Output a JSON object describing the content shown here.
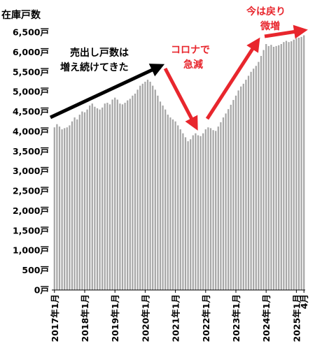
{
  "chart_data": {
    "type": "bar",
    "title": "",
    "ylabel": "在庫戸数",
    "xlabel": "",
    "ylim": [
      0,
      6500
    ],
    "y_ticks": [
      {
        "value": 6500,
        "label": "6,500戸"
      },
      {
        "value": 6000,
        "label": "6,000戸"
      },
      {
        "value": 5500,
        "label": "5,500戸"
      },
      {
        "value": 5000,
        "label": "5,000戸"
      },
      {
        "value": 4500,
        "label": "4,500戸"
      },
      {
        "value": 4000,
        "label": "4,000戸"
      },
      {
        "value": 3500,
        "label": "3,500戸"
      },
      {
        "value": 3000,
        "label": "3,000戸"
      },
      {
        "value": 2500,
        "label": "2,500戸"
      },
      {
        "value": 2000,
        "label": "2,000戸"
      },
      {
        "value": 1500,
        "label": "1,500戸"
      },
      {
        "value": 1000,
        "label": "1,000戸"
      },
      {
        "value": 500,
        "label": "500戸"
      },
      {
        "value": 0,
        "label": "0戸"
      }
    ],
    "x_ticks": [
      {
        "index": 0,
        "label": "2017年1月"
      },
      {
        "index": 12,
        "label": "2018年1月"
      },
      {
        "index": 24,
        "label": "2019年1月"
      },
      {
        "index": 36,
        "label": "2020年1月"
      },
      {
        "index": 48,
        "label": "2021年1月"
      },
      {
        "index": 60,
        "label": "2022年1月"
      },
      {
        "index": 72,
        "label": "2023年1月"
      },
      {
        "index": 84,
        "label": "2024年1月"
      },
      {
        "index": 96,
        "label": "2025年1月"
      },
      {
        "index": 99,
        "label": "4月"
      }
    ],
    "values": [
      4100,
      4180,
      4120,
      4050,
      4080,
      4100,
      4150,
      4250,
      4350,
      4300,
      4420,
      4500,
      4480,
      4550,
      4650,
      4700,
      4620,
      4580,
      4550,
      4600,
      4700,
      4720,
      4680,
      4800,
      4850,
      4800,
      4700,
      4680,
      4720,
      4780,
      4820,
      4900,
      4950,
      5050,
      5150,
      5200,
      5250,
      5300,
      5250,
      5150,
      5050,
      4900,
      4750,
      4650,
      4550,
      4420,
      4350,
      4300,
      4250,
      4150,
      4050,
      3950,
      3850,
      3750,
      3800,
      3900,
      3950,
      3900,
      3880,
      3950,
      4050,
      4100,
      4080,
      4030,
      4010,
      4120,
      4230,
      4350,
      4450,
      4560,
      4670,
      4790,
      4900,
      5030,
      5130,
      5200,
      5300,
      5400,
      5500,
      5580,
      5650,
      5750,
      5900,
      6050,
      6200,
      6150,
      6180,
      6130,
      6150,
      6170,
      6200,
      6250,
      6280,
      6250,
      6270,
      6310,
      6350,
      6360,
      6380,
      6420
    ],
    "bar_color": "#a6a6a6",
    "annotations": [
      {
        "text": "売出し戸数は\n増え続けてきた",
        "color": "#000000"
      },
      {
        "text": "コロナで\n急減",
        "color": "#e8262d"
      },
      {
        "text": "今は戻り\n微増",
        "color": "#e8262d"
      }
    ],
    "colors": {
      "black_arrow": "#000000",
      "red_arrow": "#e8262d",
      "axis": "#000000"
    }
  }
}
